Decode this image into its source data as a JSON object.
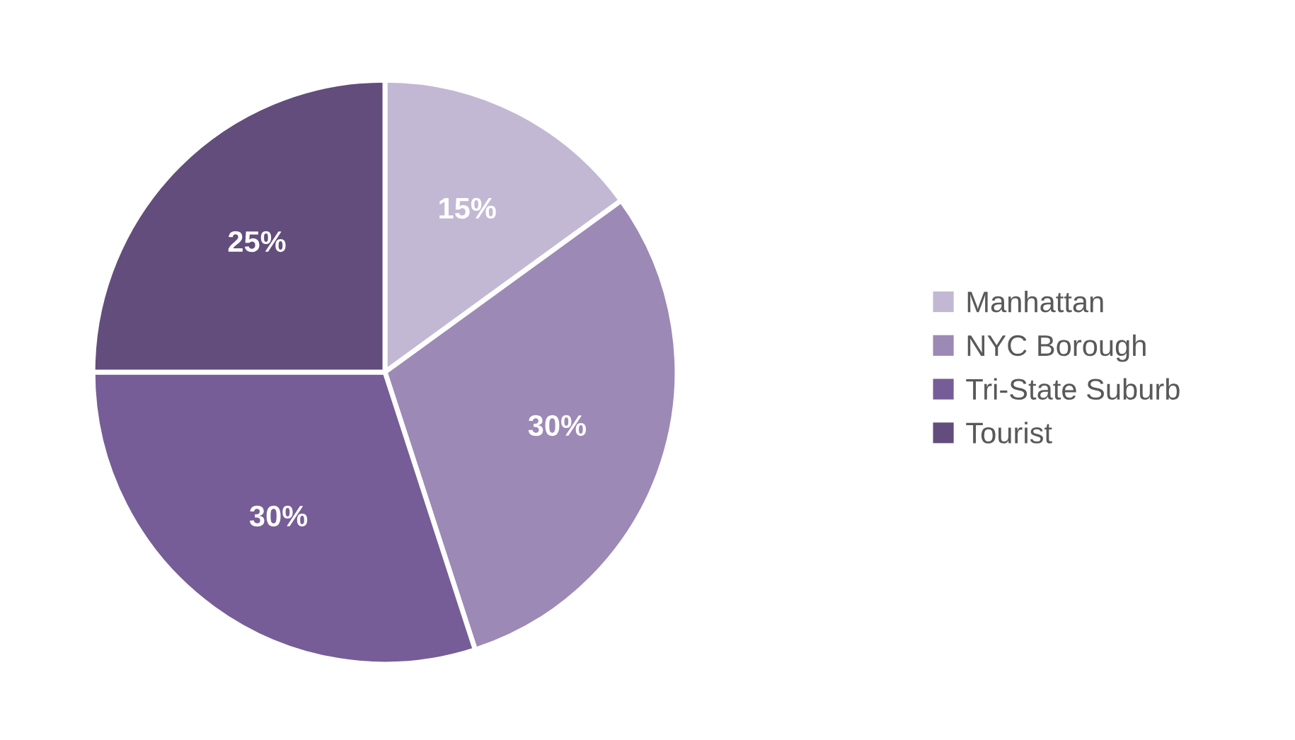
{
  "chart_data": {
    "type": "pie",
    "categories": [
      "Manhattan",
      "NYC Borough",
      "Tri-State Suburb",
      "Tourist"
    ],
    "values": [
      15,
      30,
      30,
      25
    ],
    "value_labels": [
      "15%",
      "30%",
      "30%",
      "25%"
    ],
    "colors": [
      "#c3b8d3",
      "#9c89b5",
      "#765d97",
      "#624d7c"
    ],
    "legend": "right"
  }
}
